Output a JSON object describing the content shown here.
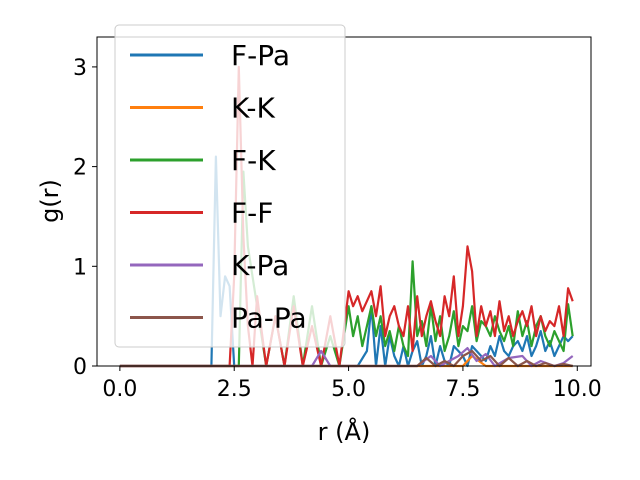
{
  "chart_data": {
    "type": "line",
    "xlabel": "r (Å)",
    "ylabel": "g(r)",
    "xlim": [
      -0.5,
      10.3
    ],
    "ylim": [
      0,
      3.3
    ],
    "xticks": [
      "0.0",
      "2.5",
      "5.0",
      "7.5",
      "10.0"
    ],
    "yticks": [
      "0",
      "1",
      "2",
      "3"
    ],
    "grid": false,
    "legend_position": "top-left",
    "series": [
      {
        "name": "F-Pa",
        "color": "#1f77b4",
        "x": [
          0.0,
          2.0,
          2.1,
          2.2,
          2.3,
          2.4,
          2.5,
          2.6,
          2.7,
          2.8,
          3.0,
          3.2,
          3.4,
          3.6,
          3.8,
          4.0,
          4.2,
          4.4,
          4.6,
          4.8,
          5.0,
          5.2,
          5.4,
          5.5,
          5.6,
          5.7,
          5.8,
          5.9,
          6.0,
          6.1,
          6.2,
          6.3,
          6.4,
          6.5,
          6.6,
          6.7,
          6.8,
          6.9,
          7.0,
          7.1,
          7.2,
          7.3,
          7.4,
          7.5,
          7.6,
          7.7,
          7.8,
          7.9,
          8.0,
          8.1,
          8.2,
          8.3,
          8.4,
          8.5,
          8.6,
          8.7,
          8.8,
          8.9,
          9.0,
          9.1,
          9.2,
          9.3,
          9.4,
          9.5,
          9.6,
          9.7,
          9.8,
          9.9
        ],
        "y": [
          0.0,
          0.0,
          2.1,
          0.5,
          0.9,
          0.8,
          0.0,
          0.0,
          0.0,
          0.0,
          0.0,
          0.0,
          0.0,
          0.0,
          0.0,
          0.0,
          0.0,
          0.0,
          0.0,
          0.0,
          0.0,
          0.0,
          0.15,
          0.6,
          0.0,
          0.4,
          0.0,
          0.3,
          0.1,
          0.0,
          0.2,
          0.0,
          0.15,
          0.25,
          0.0,
          0.1,
          0.3,
          0.0,
          0.2,
          0.05,
          0.0,
          0.2,
          0.15,
          0.1,
          0.0,
          0.2,
          0.15,
          0.1,
          0.05,
          0.2,
          0.1,
          0.3,
          0.15,
          0.1,
          0.2,
          0.25,
          0.15,
          0.3,
          0.1,
          0.2,
          0.35,
          0.15,
          0.25,
          0.1,
          0.2,
          0.3,
          0.25,
          0.3
        ]
      },
      {
        "name": "K-K",
        "color": "#ff7f0e",
        "x": [
          0.0,
          5.5,
          6.0,
          6.5,
          7.0,
          7.5,
          7.7,
          8.0,
          8.5,
          9.0,
          9.5,
          9.9
        ],
        "y": [
          0.0,
          0.0,
          0.0,
          0.0,
          0.0,
          0.0,
          0.1,
          0.0,
          0.0,
          0.0,
          0.0,
          0.0
        ]
      },
      {
        "name": "F-K",
        "color": "#2ca02c",
        "x": [
          0.0,
          2.6,
          2.7,
          2.8,
          3.0,
          3.2,
          3.4,
          3.6,
          3.8,
          4.0,
          4.2,
          4.4,
          4.6,
          4.8,
          5.0,
          5.1,
          5.2,
          5.3,
          5.4,
          5.5,
          5.6,
          5.7,
          5.8,
          5.9,
          6.0,
          6.1,
          6.2,
          6.3,
          6.4,
          6.5,
          6.6,
          6.7,
          6.8,
          6.9,
          7.0,
          7.1,
          7.2,
          7.3,
          7.4,
          7.5,
          7.6,
          7.7,
          7.8,
          7.9,
          8.0,
          8.1,
          8.2,
          8.3,
          8.4,
          8.5,
          8.6,
          8.7,
          8.8,
          8.9,
          9.0,
          9.1,
          9.2,
          9.3,
          9.4,
          9.5,
          9.6,
          9.7,
          9.8,
          9.9
        ],
        "y": [
          0.0,
          0.0,
          1.95,
          1.2,
          0.6,
          0.0,
          0.5,
          0.0,
          0.7,
          0.0,
          0.6,
          0.0,
          0.3,
          0.0,
          0.6,
          0.3,
          0.5,
          0.2,
          0.4,
          0.6,
          0.3,
          0.5,
          0.2,
          0.35,
          0.15,
          0.4,
          0.2,
          0.1,
          1.05,
          0.3,
          0.45,
          0.2,
          0.6,
          0.25,
          0.5,
          0.15,
          0.3,
          0.55,
          0.2,
          0.4,
          0.35,
          0.6,
          0.25,
          0.45,
          0.4,
          0.3,
          0.5,
          0.35,
          0.25,
          0.4,
          0.2,
          0.55,
          0.3,
          0.45,
          0.2,
          0.4,
          0.5,
          0.3,
          0.2,
          0.35,
          0.25,
          0.15,
          0.62,
          0.3
        ]
      },
      {
        "name": "F-F",
        "color": "#d62728",
        "x": [
          0.0,
          2.4,
          2.5,
          2.6,
          2.7,
          2.8,
          2.9,
          3.0,
          3.2,
          3.4,
          3.6,
          3.8,
          4.0,
          4.2,
          4.4,
          4.6,
          4.8,
          5.0,
          5.1,
          5.2,
          5.3,
          5.4,
          5.5,
          5.6,
          5.7,
          5.8,
          5.9,
          6.0,
          6.1,
          6.2,
          6.3,
          6.4,
          6.5,
          6.6,
          6.7,
          6.8,
          6.9,
          7.0,
          7.1,
          7.2,
          7.3,
          7.4,
          7.5,
          7.6,
          7.7,
          7.8,
          7.9,
          8.0,
          8.1,
          8.2,
          8.3,
          8.4,
          8.5,
          8.6,
          8.7,
          8.8,
          8.9,
          9.0,
          9.1,
          9.2,
          9.3,
          9.4,
          9.5,
          9.6,
          9.7,
          9.8,
          9.9
        ],
        "y": [
          0.0,
          0.0,
          0.9,
          3.0,
          1.3,
          0.4,
          0.0,
          0.7,
          0.0,
          0.5,
          0.0,
          0.6,
          0.0,
          0.4,
          0.0,
          0.5,
          0.0,
          0.75,
          0.6,
          0.7,
          0.55,
          0.65,
          0.75,
          0.5,
          0.8,
          0.3,
          0.5,
          0.6,
          0.4,
          0.3,
          0.6,
          0.15,
          0.7,
          0.3,
          0.5,
          0.65,
          0.45,
          0.3,
          0.7,
          0.5,
          0.9,
          0.3,
          0.6,
          1.2,
          0.95,
          0.3,
          0.6,
          0.4,
          0.55,
          0.3,
          0.65,
          0.35,
          0.5,
          0.3,
          0.45,
          0.55,
          0.4,
          0.6,
          0.3,
          0.5,
          0.35,
          0.45,
          0.4,
          0.6,
          0.3,
          0.78,
          0.65
        ]
      },
      {
        "name": "K-Pa",
        "color": "#9467bd",
        "x": [
          0.0,
          4.0,
          4.2,
          4.4,
          4.6,
          4.8,
          5.0,
          5.5,
          6.0,
          6.5,
          6.8,
          7.0,
          7.2,
          7.4,
          7.6,
          7.8,
          8.0,
          8.2,
          8.5,
          8.8,
          9.0,
          9.2,
          9.5,
          9.7,
          9.9
        ],
        "y": [
          0.0,
          0.0,
          0.0,
          0.15,
          0.0,
          0.0,
          0.0,
          0.0,
          0.0,
          0.0,
          0.1,
          0.0,
          0.05,
          0.1,
          0.18,
          0.05,
          0.12,
          0.0,
          0.08,
          0.1,
          0.0,
          0.05,
          0.0,
          0.03,
          0.1
        ]
      },
      {
        "name": "Pa-Pa",
        "color": "#8c564b",
        "x": [
          0.0,
          6.5,
          6.7,
          6.9,
          7.1,
          7.3,
          7.5,
          7.7,
          7.9,
          8.1,
          8.3,
          8.5,
          8.7,
          8.9,
          9.1,
          9.3,
          9.5,
          9.7,
          9.9
        ],
        "y": [
          0.0,
          0.0,
          0.08,
          0.0,
          0.05,
          0.0,
          0.1,
          0.15,
          0.05,
          0.1,
          0.0,
          0.08,
          0.0,
          0.05,
          0.0,
          0.03,
          0.0,
          0.02,
          0.0
        ]
      }
    ]
  }
}
